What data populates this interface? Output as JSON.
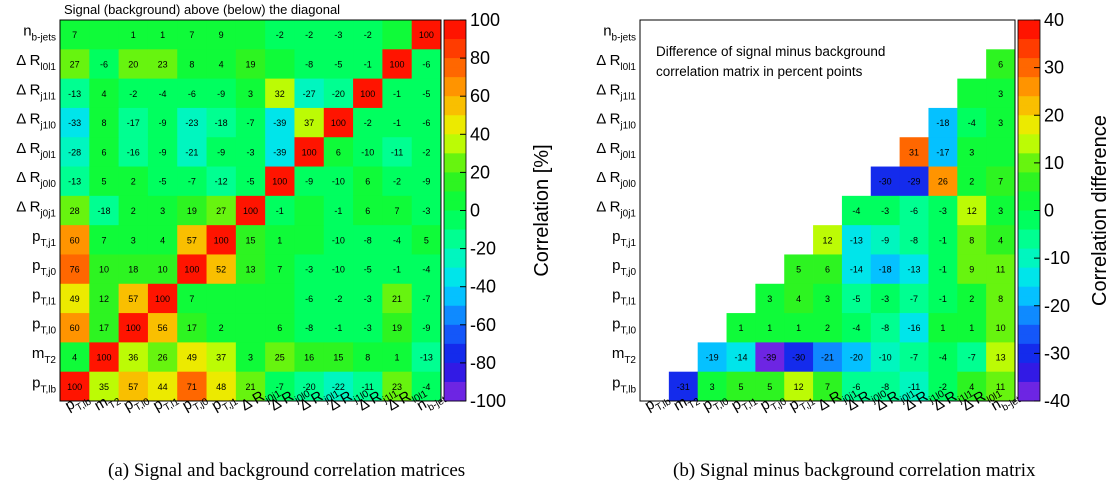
{
  "chart_data": [
    {
      "type": "heatmap",
      "title": "Signal (background) above (below) the diagonal",
      "x_labels": [
        "p_T,lb",
        "m_T2",
        "p_T,l0",
        "p_T,l1",
        "p_T,j0",
        "p_T,j1",
        "Δ R_j0j1",
        "Δ R_j0l0",
        "Δ R_j0l1",
        "Δ R_j1l0",
        "Δ R_j1l1",
        "Δ R_l0l1",
        "n_b-jets"
      ],
      "y_labels_top_to_bottom": [
        "n_b-jets",
        "Δ R_l0l1",
        "Δ R_j1l1",
        "Δ R_j1l0",
        "Δ R_j0l1",
        "Δ R_j0l0",
        "Δ R_j0j1",
        "p_T,j1",
        "p_T,j0",
        "p_T,l1",
        "p_T,l0",
        "m_T2",
        "p_T,lb"
      ],
      "rows": [
        [
          "7",
          "",
          "1",
          "1",
          "7",
          "9",
          "",
          "-2",
          "-2",
          "-3",
          "-2",
          "",
          "100"
        ],
        [
          "27",
          "-6",
          "20",
          "23",
          "8",
          "4",
          "19",
          "",
          "-8",
          "-5",
          "-1",
          "100",
          "-6"
        ],
        [
          "-13",
          "4",
          "-2",
          "-4",
          "-6",
          "-9",
          "3",
          "32",
          "-27",
          "-20",
          "100",
          "-1",
          "-5"
        ],
        [
          "-33",
          "8",
          "-17",
          "-9",
          "-23",
          "-18",
          "-7",
          "-39",
          "37",
          "100",
          "-2",
          "-1",
          "-6"
        ],
        [
          "-28",
          "6",
          "-16",
          "-9",
          "-21",
          "-9",
          "-3",
          "-39",
          "100",
          "6",
          "-10",
          "-11",
          "-2"
        ],
        [
          "-13",
          "5",
          "2",
          "-5",
          "-7",
          "-12",
          "-5",
          "100",
          "-9",
          "-10",
          "6",
          "-2",
          "-9"
        ],
        [
          "28",
          "-18",
          "2",
          "3",
          "19",
          "27",
          "100",
          "-1",
          "",
          "-1",
          "6",
          "7",
          "-3"
        ],
        [
          "60",
          "7",
          "3",
          "4",
          "57",
          "100",
          "15",
          "1",
          "",
          "-10",
          "-8",
          "-4",
          "5"
        ],
        [
          "76",
          "10",
          "18",
          "10",
          "100",
          "52",
          "13",
          "7",
          "-3",
          "-10",
          "-5",
          "-1",
          "-4"
        ],
        [
          "49",
          "12",
          "57",
          "100",
          "7",
          "",
          "",
          "",
          "-6",
          "-2",
          "-3",
          "21",
          "-7"
        ],
        [
          "60",
          "17",
          "100",
          "56",
          "17",
          "2",
          "",
          "6",
          "-8",
          "-1",
          "-3",
          "19",
          "-9"
        ],
        [
          "4",
          "100",
          "36",
          "26",
          "49",
          "37",
          "3",
          "25",
          "16",
          "15",
          "8",
          "1",
          "-13"
        ],
        [
          "100",
          "35",
          "57",
          "44",
          "71",
          "48",
          "21",
          "-7",
          "-20",
          "-22",
          "-11",
          "23",
          "-4"
        ]
      ],
      "zrange": [
        -100,
        100
      ],
      "colorbar": {
        "label": "Correlation [%]",
        "ticks": [
          "100",
          "80",
          "60",
          "40",
          "20",
          "0",
          "-20",
          "-40",
          "-60",
          "-80",
          "-100"
        ]
      }
    },
    {
      "type": "heatmap",
      "annotation": [
        "Difference of signal minus background",
        "correlation matrix in percent points"
      ],
      "x_labels": [
        "p_T,lb",
        "m_T2",
        "p_T,l0",
        "p_T,l1",
        "p_T,j0",
        "p_T,j1",
        "Δ R_j0j1",
        "Δ R_j0l0",
        "Δ R_j0l1",
        "Δ R_j1l0",
        "Δ R_j1l1",
        "Δ R_l0l1",
        "n_b-jets"
      ],
      "y_labels_top_to_bottom": [
        "n_b-jets",
        "Δ R_l0l1",
        "Δ R_j1l1",
        "Δ R_j1l0",
        "Δ R_j0l1",
        "Δ R_j0l0",
        "Δ R_j0j1",
        "p_T,j1",
        "p_T,j0",
        "p_T,l1",
        "p_T,l0",
        "m_T2",
        "p_T,lb"
      ],
      "rows": [
        [
          null,
          null,
          null,
          null,
          null,
          null,
          null,
          null,
          null,
          null,
          null,
          null,
          null
        ],
        [
          null,
          null,
          null,
          null,
          null,
          null,
          null,
          null,
          null,
          null,
          null,
          null,
          "6"
        ],
        [
          null,
          null,
          null,
          null,
          null,
          null,
          null,
          null,
          null,
          null,
          null,
          "",
          "3"
        ],
        [
          null,
          null,
          null,
          null,
          null,
          null,
          null,
          null,
          null,
          null,
          "-18",
          "-4",
          "3"
        ],
        [
          null,
          null,
          null,
          null,
          null,
          null,
          null,
          null,
          null,
          "31",
          "-17",
          "3",
          ""
        ],
        [
          null,
          null,
          null,
          null,
          null,
          null,
          null,
          null,
          "-30",
          "-29",
          "26",
          "2",
          "7"
        ],
        [
          null,
          null,
          null,
          null,
          null,
          null,
          null,
          "-4",
          "-3",
          "-6",
          "-3",
          "12",
          "3"
        ],
        [
          null,
          null,
          null,
          null,
          null,
          null,
          "12",
          "-13",
          "-9",
          "-8",
          "-1",
          "8",
          "4"
        ],
        [
          null,
          null,
          null,
          null,
          null,
          "5",
          "6",
          "-14",
          "-18",
          "-13",
          "-1",
          "9",
          "11"
        ],
        [
          null,
          null,
          null,
          null,
          "3",
          "4",
          "3",
          "-5",
          "-3",
          "-7",
          "-1",
          "2",
          "8"
        ],
        [
          null,
          null,
          null,
          "1",
          "1",
          "1",
          "2",
          "-4",
          "-8",
          "-16",
          "1",
          "1",
          "10"
        ],
        [
          null,
          null,
          "-19",
          "-14",
          "-39",
          "-30",
          "-21",
          "-20",
          "-10",
          "-7",
          "-4",
          "-7",
          "13"
        ],
        [
          null,
          "-31",
          "3",
          "5",
          "5",
          "12",
          "7",
          "-6",
          "-8",
          "-11",
          "-2",
          "4",
          "11"
        ]
      ],
      "zrange": [
        -40,
        40
      ],
      "colorbar": {
        "label": "Correlation difference",
        "ticks": [
          "40",
          "30",
          "20",
          "10",
          "0",
          "-10",
          "-20",
          "-30",
          "-40"
        ]
      }
    }
  ],
  "captions": {
    "a": "(a) Signal and background correlation matrices",
    "b": "(b) Signal minus background correlation matrix"
  }
}
